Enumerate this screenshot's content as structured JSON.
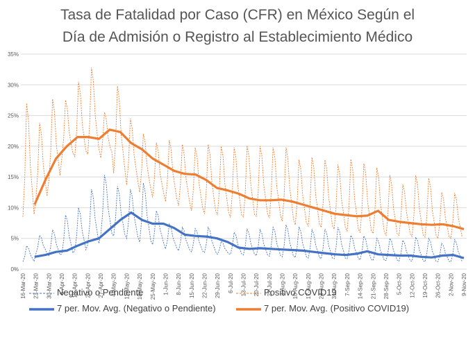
{
  "chart_data": {
    "type": "line",
    "title_lines": [
      "Tasa de Fatalidad por Caso (CFR) en México Según el",
      "Día de Admisión o Registro al Establecimiento Médico"
    ],
    "xlabel": "",
    "ylabel": "",
    "x_tick_labels": [
      "16-Mar-20",
      "23-Mar-20",
      "30-Mar-20",
      "6-Apr-20",
      "13-Apr-20",
      "20-Apr-20",
      "27-Apr-20",
      "4-May-20",
      "11-May-20",
      "18-May-20",
      "25-May-20",
      "1-Jun-20",
      "8-Jun-20",
      "15-Jun-20",
      "22-Jun-20",
      "29-Jun-20",
      "6-Jul-20",
      "13-Jul-20",
      "20-Jul-20",
      "27-Jul-20",
      "3-Aug-20",
      "10-Aug-20",
      "17-Aug-20",
      "24-Aug-20",
      "31-Aug-20",
      "7-Sep-20",
      "14-Sep-20",
      "21-Sep-20",
      "28-Sep-20",
      "5-Oct-20",
      "12-Oct-20",
      "19-Oct-20",
      "26-Oct-20",
      "2-Nov-20",
      "9-Nov-20"
    ],
    "y_tick_labels": [
      "0%",
      "5%",
      "10%",
      "15%",
      "20%",
      "25%",
      "30%",
      "35%"
    ],
    "ylim": [
      0,
      35
    ],
    "grid": true,
    "legend_position": "bottom",
    "series": [
      {
        "name": "Negativo o Pendiente",
        "color": "#4472C4",
        "style": "dashed-thin",
        "weekly_peak_values": [
          3.8,
          5.5,
          6.4,
          8.8,
          10.0,
          13.0,
          15.3,
          13.5,
          13.0,
          14.0,
          9.5,
          7.3,
          6.8,
          6.6,
          6.8,
          4.5,
          6.0,
          6.5,
          6.4,
          6.8,
          7.2,
          6.9,
          6.4,
          6.5,
          6.8,
          5.5,
          5.4,
          5.0,
          5.0,
          4.7,
          5.2,
          5.0,
          4.2,
          4.8
        ],
        "weekly_trough_values": [
          1.2,
          2.5,
          2.2,
          2.5,
          3.0,
          4.0,
          5.5,
          5.4,
          5.0,
          4.4,
          4.0,
          3.3,
          3.0,
          2.8,
          2.7,
          2.4,
          2.4,
          2.3,
          2.2,
          2.1,
          2.0,
          1.9,
          1.8,
          1.7,
          1.7,
          1.7,
          1.5,
          1.4,
          1.4,
          1.3,
          1.3,
          1.2,
          1.2,
          1.2
        ]
      },
      {
        "name": "Positivo COVID19",
        "color": "#ED7D31",
        "style": "dashed-thin",
        "weekly_peak_values": [
          27.0,
          23.8,
          27.7,
          27.5,
          30.5,
          32.8,
          25.5,
          29.8,
          24.5,
          22.0,
          20.6,
          21.0,
          20.3,
          19.8,
          20.3,
          20.0,
          19.8,
          20.1,
          20.0,
          19.8,
          19.8,
          17.8,
          18.2,
          17.8,
          17.0,
          17.9,
          17.2,
          16.5,
          15.3,
          13.8,
          15.2,
          14.8,
          12.5,
          12.4
        ],
        "weekly_trough_values": [
          8.5,
          11.3,
          14.5,
          18.0,
          18.3,
          18.7,
          18.1,
          15.6,
          13.7,
          12.5,
          11.7,
          11.0,
          10.3,
          9.5,
          9.0,
          8.8,
          8.4,
          8.5,
          8.6,
          8.3,
          7.8,
          7.2,
          7.0,
          6.8,
          6.5,
          6.2,
          6.0,
          5.8,
          5.5,
          5.5,
          5.3,
          5.2,
          5.0,
          5.0
        ]
      },
      {
        "name": "7 per. Mov. Avg. (Negativo o Pendiente)",
        "color": "#4472C4",
        "style": "solid-thick",
        "weekly_values": [
          2.0,
          2.3,
          2.8,
          3.0,
          3.8,
          4.5,
          5.0,
          6.5,
          8.0,
          9.2,
          8.0,
          7.4,
          7.4,
          6.7,
          5.6,
          5.4,
          5.3,
          5.0,
          4.4,
          3.5,
          3.3,
          3.4,
          3.3,
          3.2,
          3.1,
          3.0,
          2.8,
          2.6,
          2.4,
          2.3,
          2.5,
          2.9,
          2.4,
          2.3,
          2.2,
          2.2,
          2.0,
          1.9,
          2.2,
          2.3,
          1.8
        ]
      },
      {
        "name": "7 per. Mov. Avg. (Positivo COVID19)",
        "color": "#ED7D31",
        "style": "solid-thick",
        "weekly_values": [
          10.5,
          14.5,
          18.0,
          20.0,
          21.5,
          21.5,
          21.2,
          22.7,
          22.3,
          20.5,
          19.5,
          18.0,
          17.0,
          16.0,
          15.5,
          15.4,
          14.5,
          13.2,
          12.8,
          12.3,
          11.5,
          11.2,
          11.2,
          11.3,
          11.0,
          10.5,
          10.0,
          9.5,
          9.0,
          8.8,
          8.6,
          8.7,
          9.5,
          8.0,
          7.7,
          7.5,
          7.3,
          7.2,
          7.3,
          7.0,
          6.5
        ]
      }
    ]
  },
  "legend": {
    "items": [
      {
        "label": "Negativo o Pendiente"
      },
      {
        "label": "Positivo COVID19"
      },
      {
        "label": "7 per. Mov. Avg. (Negativo o Pendiente)"
      },
      {
        "label": "7 per. Mov. Avg. (Positivo COVID19)"
      }
    ]
  }
}
